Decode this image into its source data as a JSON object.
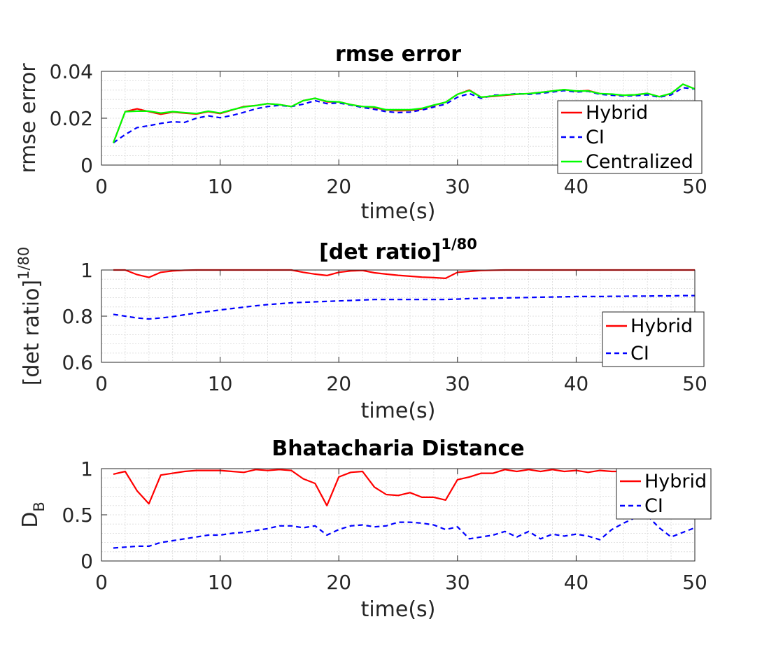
{
  "colors": {
    "hybrid": "#ff0000",
    "ci": "#0000ff",
    "centralized": "#00ff00"
  },
  "chart_data": [
    {
      "type": "line",
      "title": "rmse error",
      "title_sup": "",
      "xlabel": "time(s)",
      "ylabel": "rmse error",
      "ylabel_sup": "",
      "ylabel_sub": "",
      "xlim": [
        0,
        50
      ],
      "ylim": [
        0,
        0.04
      ],
      "xticks": [
        0,
        10,
        20,
        30,
        40,
        50
      ],
      "yticks": [
        0,
        0.02,
        0.04
      ],
      "xtick_labels": [
        "0",
        "10",
        "20",
        "30",
        "40",
        "50"
      ],
      "ytick_labels": [
        "0",
        "0.02",
        "0.04"
      ],
      "grid": true,
      "legend": "right",
      "x": [
        1,
        2,
        3,
        4,
        5,
        6,
        7,
        8,
        9,
        10,
        11,
        12,
        13,
        14,
        15,
        16,
        17,
        18,
        19,
        20,
        21,
        22,
        23,
        24,
        25,
        26,
        27,
        28,
        29,
        30,
        31,
        32,
        33,
        34,
        35,
        36,
        37,
        38,
        39,
        40,
        41,
        42,
        43,
        44,
        45,
        46,
        47,
        48,
        49,
        50
      ],
      "series": [
        {
          "name": "Hybrid",
          "color": "#ff0000",
          "dash": "solid",
          "values": [
            0.0095,
            0.0228,
            0.024,
            0.0228,
            0.0217,
            0.0226,
            0.0222,
            0.0218,
            0.0228,
            0.022,
            0.0235,
            0.025,
            0.0254,
            0.0262,
            0.0258,
            0.025,
            0.0275,
            0.0285,
            0.027,
            0.027,
            0.0258,
            0.025,
            0.0245,
            0.0235,
            0.0232,
            0.0233,
            0.024,
            0.0255,
            0.0268,
            0.0302,
            0.032,
            0.029,
            0.0293,
            0.0298,
            0.0302,
            0.0305,
            0.031,
            0.0316,
            0.0322,
            0.0315,
            0.0318,
            0.0305,
            0.0302,
            0.0298,
            0.03,
            0.0306,
            0.0292,
            0.0305,
            0.0345,
            0.0325
          ]
        },
        {
          "name": "CI",
          "color": "#0000ff",
          "dash": "dashed",
          "values": [
            0.0095,
            0.013,
            0.016,
            0.0168,
            0.0178,
            0.0185,
            0.0182,
            0.02,
            0.021,
            0.0202,
            0.0212,
            0.0225,
            0.024,
            0.025,
            0.0255,
            0.025,
            0.026,
            0.0275,
            0.0262,
            0.0265,
            0.0256,
            0.0246,
            0.0238,
            0.0228,
            0.0224,
            0.0226,
            0.0235,
            0.0248,
            0.026,
            0.029,
            0.0305,
            0.0285,
            0.0298,
            0.03,
            0.0305,
            0.0302,
            0.0306,
            0.0312,
            0.0318,
            0.0312,
            0.0315,
            0.0302,
            0.0298,
            0.0295,
            0.0296,
            0.03,
            0.029,
            0.03,
            0.033,
            0.0325
          ]
        },
        {
          "name": "Centralized",
          "color": "#00ff00",
          "dash": "solid",
          "values": [
            0.0095,
            0.0228,
            0.023,
            0.023,
            0.0222,
            0.0228,
            0.0224,
            0.022,
            0.023,
            0.0222,
            0.0236,
            0.0248,
            0.0254,
            0.0262,
            0.0258,
            0.025,
            0.0275,
            0.0285,
            0.0272,
            0.027,
            0.0258,
            0.025,
            0.0248,
            0.0236,
            0.0236,
            0.0236,
            0.0242,
            0.0256,
            0.0268,
            0.0302,
            0.0318,
            0.029,
            0.0295,
            0.03,
            0.0303,
            0.0305,
            0.031,
            0.0316,
            0.0322,
            0.0316,
            0.0316,
            0.0305,
            0.0303,
            0.0298,
            0.03,
            0.0306,
            0.0292,
            0.0306,
            0.0345,
            0.0325
          ]
        }
      ]
    },
    {
      "type": "line",
      "title": "[det ratio]",
      "title_sup": "1/80",
      "xlabel": "time(s)",
      "ylabel": "[det ratio]",
      "ylabel_sup": "1/80",
      "ylabel_sub": "",
      "xlim": [
        0,
        50
      ],
      "ylim": [
        0.6,
        1
      ],
      "xticks": [
        0,
        10,
        20,
        30,
        40,
        50
      ],
      "yticks": [
        0.6,
        0.8,
        1
      ],
      "xtick_labels": [
        "0",
        "10",
        "20",
        "30",
        "40",
        "50"
      ],
      "ytick_labels": [
        "0.6",
        "0.8",
        "1"
      ],
      "grid": true,
      "legend": "bottom-right",
      "x": [
        1,
        2,
        3,
        4,
        5,
        6,
        7,
        8,
        9,
        10,
        11,
        12,
        13,
        14,
        15,
        16,
        17,
        18,
        19,
        20,
        21,
        22,
        23,
        24,
        25,
        26,
        27,
        28,
        29,
        30,
        31,
        32,
        33,
        34,
        35,
        36,
        37,
        38,
        39,
        40,
        41,
        42,
        43,
        44,
        45,
        46,
        47,
        48,
        49,
        50
      ],
      "series": [
        {
          "name": "Hybrid",
          "color": "#ff0000",
          "dash": "solid",
          "values": [
            1.0,
            1.0,
            0.98,
            0.968,
            0.99,
            0.996,
            0.999,
            1.0,
            1.0,
            1.0,
            1.0,
            1.0,
            1.0,
            1.0,
            1.0,
            1.0,
            0.99,
            0.982,
            0.976,
            0.99,
            0.996,
            0.998,
            0.988,
            0.982,
            0.977,
            0.973,
            0.969,
            0.967,
            0.964,
            0.99,
            0.994,
            0.998,
            0.999,
            1.0,
            1.0,
            1.0,
            1.0,
            1.0,
            1.0,
            1.0,
            1.0,
            1.0,
            1.0,
            1.0,
            1.0,
            1.0,
            1.0,
            1.0,
            1.0,
            1.0
          ]
        },
        {
          "name": "CI",
          "color": "#0000ff",
          "dash": "dashed",
          "values": [
            0.808,
            0.8,
            0.792,
            0.788,
            0.792,
            0.798,
            0.806,
            0.814,
            0.82,
            0.827,
            0.833,
            0.839,
            0.845,
            0.85,
            0.854,
            0.858,
            0.86,
            0.862,
            0.864,
            0.866,
            0.868,
            0.87,
            0.872,
            0.872,
            0.872,
            0.872,
            0.872,
            0.872,
            0.872,
            0.874,
            0.876,
            0.877,
            0.878,
            0.879,
            0.88,
            0.881,
            0.882,
            0.883,
            0.884,
            0.885,
            0.885,
            0.885,
            0.886,
            0.886,
            0.887,
            0.887,
            0.888,
            0.888,
            0.889,
            0.889
          ]
        }
      ]
    },
    {
      "type": "line",
      "title": "Bhatacharia Distance",
      "title_sup": "",
      "xlabel": "time(s)",
      "ylabel": "D",
      "ylabel_sup": "",
      "ylabel_sub": "B",
      "xlim": [
        0,
        50
      ],
      "ylim": [
        0,
        1
      ],
      "xticks": [
        0,
        10,
        20,
        30,
        40,
        50
      ],
      "yticks": [
        0,
        0.5,
        1
      ],
      "xtick_labels": [
        "0",
        "10",
        "20",
        "30",
        "40",
        "50"
      ],
      "ytick_labels": [
        "0",
        "0.5",
        "1"
      ],
      "grid": true,
      "legend": "top-right",
      "x": [
        1,
        2,
        3,
        4,
        5,
        6,
        7,
        8,
        9,
        10,
        11,
        12,
        13,
        14,
        15,
        16,
        17,
        18,
        19,
        20,
        21,
        22,
        23,
        24,
        25,
        26,
        27,
        28,
        29,
        30,
        31,
        32,
        33,
        34,
        35,
        36,
        37,
        38,
        39,
        40,
        41,
        42,
        43,
        44,
        45,
        46,
        47,
        48,
        49,
        50
      ],
      "series": [
        {
          "name": "Hybrid",
          "color": "#ff0000",
          "dash": "solid",
          "values": [
            0.94,
            0.97,
            0.76,
            0.62,
            0.93,
            0.95,
            0.97,
            0.98,
            0.98,
            0.98,
            0.97,
            0.96,
            0.99,
            0.98,
            0.99,
            0.98,
            0.89,
            0.84,
            0.6,
            0.91,
            0.96,
            0.97,
            0.8,
            0.72,
            0.71,
            0.74,
            0.69,
            0.69,
            0.66,
            0.88,
            0.91,
            0.95,
            0.95,
            0.99,
            0.97,
            0.99,
            0.97,
            0.99,
            0.97,
            0.98,
            0.96,
            0.98,
            0.97,
            0.97,
            0.97,
            0.97,
            0.97,
            0.97,
            0.97,
            0.97
          ]
        },
        {
          "name": "CI",
          "color": "#0000ff",
          "dash": "dashed",
          "values": [
            0.14,
            0.15,
            0.16,
            0.16,
            0.2,
            0.22,
            0.24,
            0.26,
            0.28,
            0.28,
            0.3,
            0.31,
            0.33,
            0.35,
            0.38,
            0.38,
            0.36,
            0.38,
            0.28,
            0.34,
            0.38,
            0.39,
            0.37,
            0.38,
            0.42,
            0.42,
            0.41,
            0.39,
            0.34,
            0.37,
            0.24,
            0.26,
            0.28,
            0.32,
            0.26,
            0.32,
            0.24,
            0.29,
            0.27,
            0.29,
            0.27,
            0.23,
            0.34,
            0.41,
            0.47,
            0.49,
            0.36,
            0.26,
            0.31,
            0.36
          ]
        }
      ]
    }
  ]
}
